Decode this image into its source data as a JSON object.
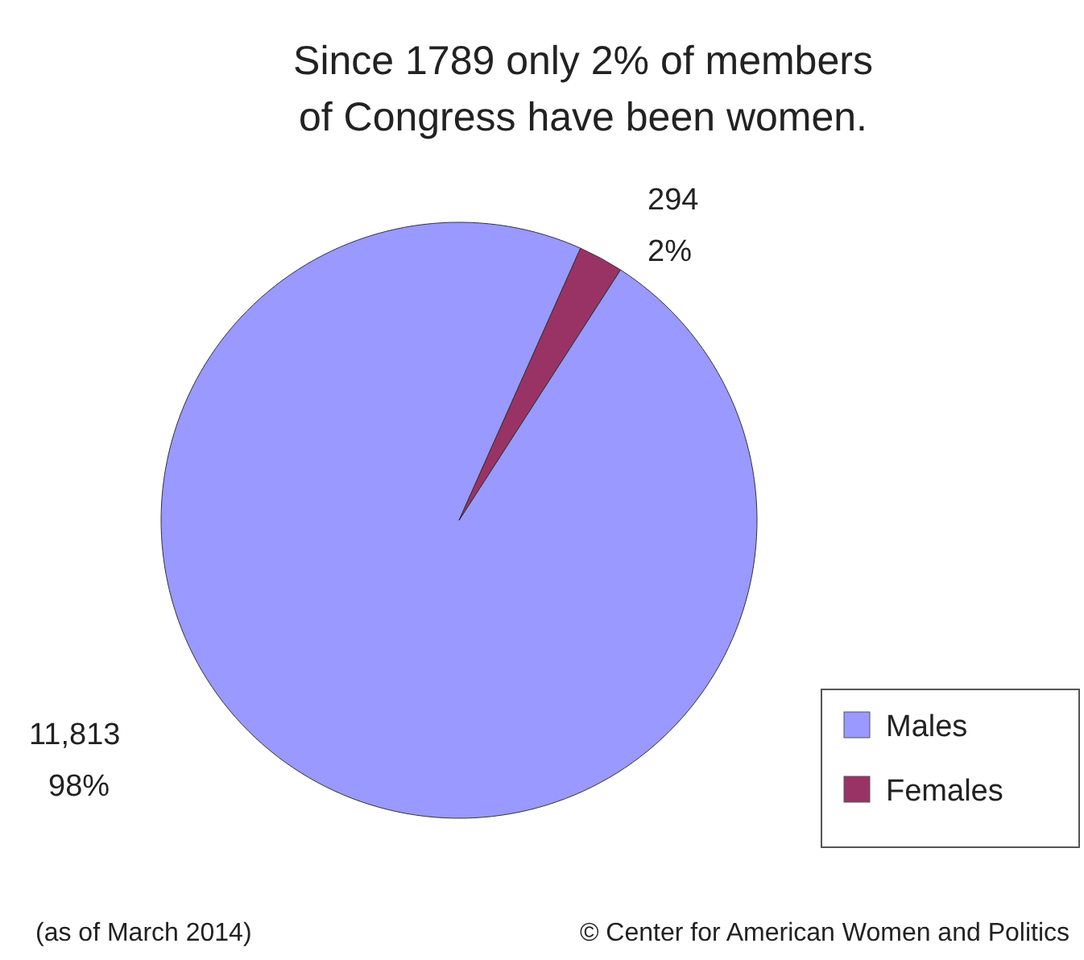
{
  "chart_data": {
    "type": "pie",
    "title": "Since 1789 only 2% of members\nof Congress have been women.",
    "categories": [
      "Males",
      "Females"
    ],
    "values": [
      11813,
      294
    ],
    "colors": [
      "#9999ff",
      "#993366"
    ],
    "value_labels": [
      "11,813\n98%",
      "294\n2%"
    ],
    "legend": "bottom right",
    "annotations": [
      "(as of March 2014)",
      "© Center for American Women and Politics"
    ]
  }
}
